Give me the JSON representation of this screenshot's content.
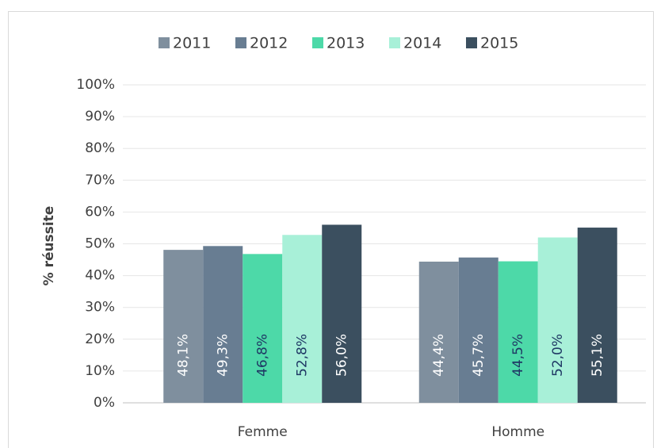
{
  "chart_data": {
    "type": "bar",
    "y_label": "% réussite",
    "categories": [
      "Femme",
      "Homme"
    ],
    "series": [
      {
        "name": "2011",
        "color": "#7f8f9e",
        "label_color": "#ffffff",
        "values": [
          48.1,
          44.4
        ],
        "value_labels": [
          "48,1%",
          "44,4%"
        ]
      },
      {
        "name": "2012",
        "color": "#687d92",
        "label_color": "#ffffff",
        "values": [
          49.3,
          45.7
        ],
        "value_labels": [
          "49,3%",
          "45,7%"
        ]
      },
      {
        "name": "2013",
        "color": "#4dd9a8",
        "label_color": "#1f3864",
        "values": [
          46.8,
          44.5
        ],
        "value_labels": [
          "46,8%",
          "44,5%"
        ]
      },
      {
        "name": "2014",
        "color": "#a8f0d8",
        "label_color": "#1f3864",
        "values": [
          52.8,
          52.0
        ],
        "value_labels": [
          "52,8%",
          "52,0%"
        ]
      },
      {
        "name": "2015",
        "color": "#3b4f5f",
        "label_color": "#ffffff",
        "values": [
          56.0,
          55.1
        ],
        "value_labels": [
          "56,0%",
          "55,1%"
        ]
      }
    ],
    "ylim": [
      0,
      100
    ],
    "yticks": [
      {
        "value": 0,
        "label": "0%"
      },
      {
        "value": 10,
        "label": "10%"
      },
      {
        "value": 20,
        "label": "20%"
      },
      {
        "value": 30,
        "label": "30%"
      },
      {
        "value": 40,
        "label": "40%"
      },
      {
        "value": 50,
        "label": "50%"
      },
      {
        "value": 60,
        "label": "60%"
      },
      {
        "value": 70,
        "label": "70%"
      },
      {
        "value": 80,
        "label": "80%"
      },
      {
        "value": 90,
        "label": "90%"
      },
      {
        "value": 100,
        "label": "100%"
      }
    ],
    "grid": true,
    "legend": "top"
  }
}
